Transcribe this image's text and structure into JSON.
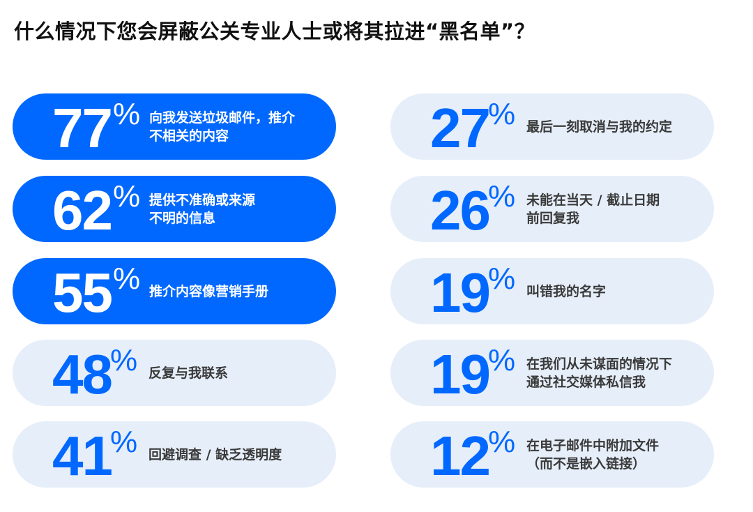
{
  "title": "什么情况下您会屏蔽公关专业人士或将其拉进“黑名单”？",
  "colors": {
    "accent": "#0068ff",
    "light_bg": "#e6eef9",
    "text_dark": "#333333"
  },
  "chart_data": {
    "type": "table",
    "title": "什么情况下您会屏蔽公关专业人士或将其拉进“黑名单”？",
    "unit": "%",
    "items": [
      {
        "value": 77,
        "display": "77",
        "label": "向我发送垃圾邮件，推介\n不相关的内容",
        "highlight": true
      },
      {
        "value": 62,
        "display": "62",
        "label": "提供不准确或来源\n不明的信息",
        "highlight": true
      },
      {
        "value": 55,
        "display": "55",
        "label": "推介内容像营销手册",
        "highlight": true
      },
      {
        "value": 48,
        "display": "48",
        "label": "反复与我联系",
        "highlight": false
      },
      {
        "value": 41,
        "display": "41",
        "label": "回避调查 / 缺乏透明度",
        "highlight": false
      },
      {
        "value": 27,
        "display": "27",
        "label": "最后一刻取消与我的约定",
        "highlight": false
      },
      {
        "value": 26,
        "display": "26",
        "label": "未能在当天 / 截止日期\n前回复我",
        "highlight": false
      },
      {
        "value": 19,
        "display": "19",
        "label": "叫错我的名字",
        "highlight": false
      },
      {
        "value": 19,
        "display": "19",
        "label": "在我们从未谋面的情况下\n通过社交媒体私信我",
        "highlight": false
      },
      {
        "value": 12,
        "display": "12",
        "label": "在电子邮件中附加文件\n（而不是嵌入链接）",
        "highlight": false
      }
    ]
  }
}
